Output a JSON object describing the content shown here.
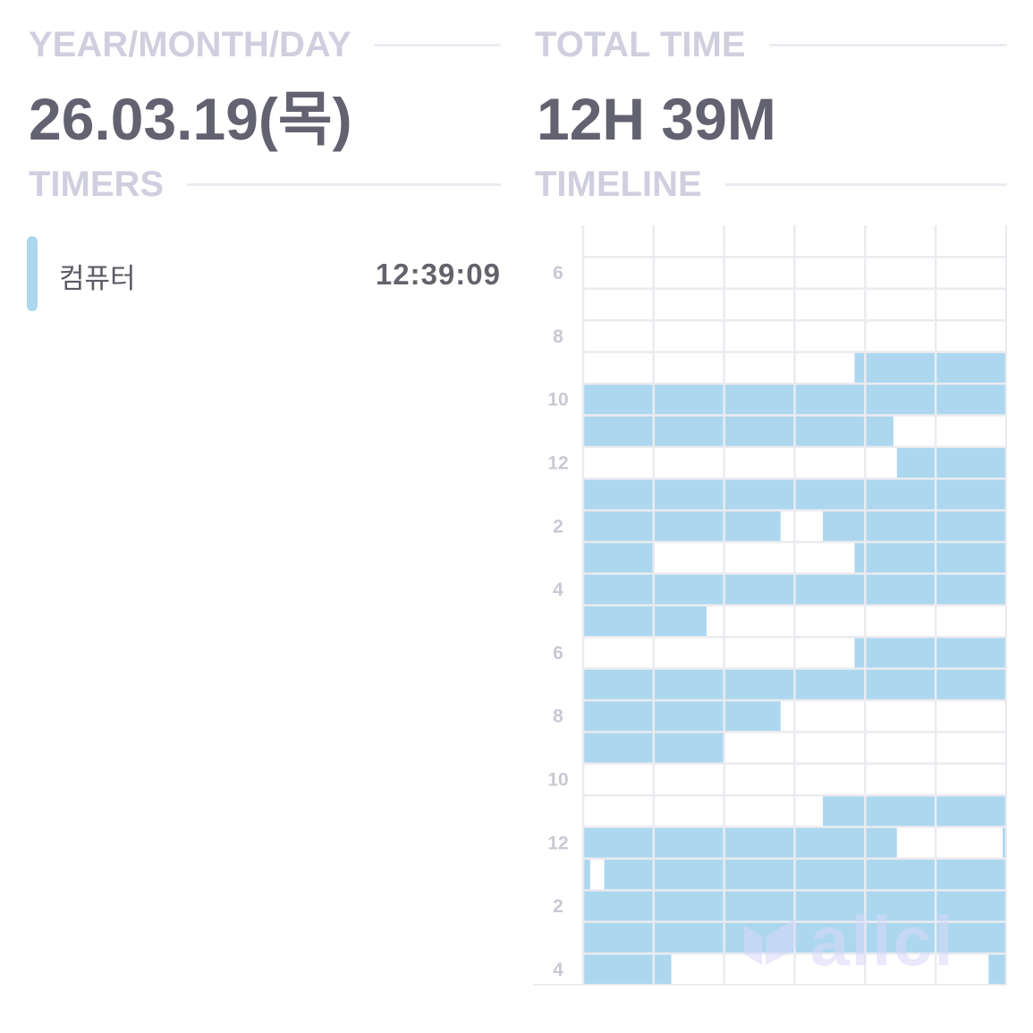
{
  "colors": {
    "header_label": "#cfcfdf",
    "header_rule": "#ebebf1",
    "value_text": "#626270",
    "grid_line": "#ebebf0",
    "block_fill": "#acd7ef",
    "timer_accent": "#acd7ef",
    "hour_label": "#c9c9d3",
    "watermark": "#d8d8f8"
  },
  "date_section": {
    "label": "YEAR/MONTH/DAY",
    "value": "26.03.19(목)"
  },
  "total_section": {
    "label": "TOTAL TIME",
    "value": "12H 39M"
  },
  "timers_section": {
    "label": "TIMERS",
    "items": [
      {
        "name": "컴퓨터",
        "time": "12:39:09"
      }
    ]
  },
  "timeline_section": {
    "label": "TIMELINE",
    "start_hour": 5,
    "hour_labels": [
      "6",
      "8",
      "10",
      "12",
      "2",
      "4",
      "6",
      "8",
      "10",
      "12",
      "2",
      "4"
    ],
    "note": "",
    "rows": [
      {
        "hour": 5,
        "intervals": []
      },
      {
        "hour": 6,
        "intervals": []
      },
      {
        "hour": 7,
        "intervals": []
      },
      {
        "hour": 8,
        "intervals": []
      },
      {
        "hour": 9,
        "intervals": [
          [
            38.5,
            60
          ]
        ]
      },
      {
        "hour": 10,
        "intervals": [
          [
            0,
            60
          ]
        ]
      },
      {
        "hour": 11,
        "intervals": [
          [
            0,
            44
          ]
        ]
      },
      {
        "hour": 12,
        "intervals": [
          [
            44.5,
            60
          ]
        ]
      },
      {
        "hour": 13,
        "intervals": [
          [
            0,
            60
          ]
        ]
      },
      {
        "hour": 14,
        "intervals": [
          [
            0,
            28
          ],
          [
            34,
            60
          ]
        ]
      },
      {
        "hour": 15,
        "intervals": [
          [
            0,
            10
          ],
          [
            38.5,
            60
          ]
        ]
      },
      {
        "hour": 16,
        "intervals": [
          [
            0,
            60
          ]
        ]
      },
      {
        "hour": 17,
        "intervals": [
          [
            0,
            17.5
          ]
        ]
      },
      {
        "hour": 18,
        "intervals": [
          [
            38.5,
            60
          ]
        ]
      },
      {
        "hour": 19,
        "intervals": [
          [
            0,
            60
          ]
        ]
      },
      {
        "hour": 20,
        "intervals": [
          [
            0,
            28
          ]
        ]
      },
      {
        "hour": 21,
        "intervals": [
          [
            0,
            20
          ]
        ]
      },
      {
        "hour": 22,
        "intervals": []
      },
      {
        "hour": 23,
        "intervals": [
          [
            34,
            60
          ]
        ]
      },
      {
        "hour": 0,
        "intervals": [
          [
            0,
            44.5
          ],
          [
            59.5,
            60
          ]
        ]
      },
      {
        "hour": 1,
        "intervals": [
          [
            0,
            1
          ],
          [
            3,
            60
          ]
        ]
      },
      {
        "hour": 2,
        "intervals": [
          [
            0,
            60
          ]
        ]
      },
      {
        "hour": 3,
        "intervals": [
          [
            0,
            60
          ]
        ]
      },
      {
        "hour": 4,
        "intervals": [
          [
            0,
            12.5
          ],
          [
            57.5,
            60
          ]
        ]
      }
    ]
  },
  "watermark": {
    "text": "allcl",
    "icon": "book-logo-icon"
  }
}
